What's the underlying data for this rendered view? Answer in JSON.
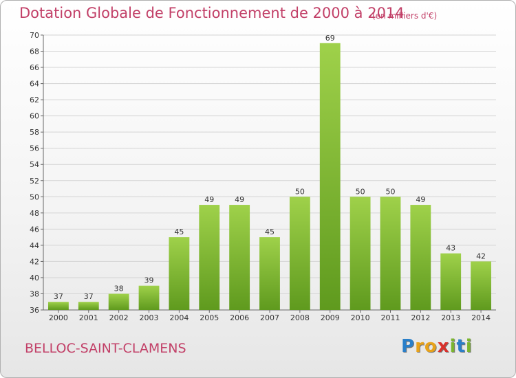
{
  "chart_data": {
    "type": "bar",
    "title": "Dotation Globale de Fonctionnement de 2000 à 2014",
    "subtitle": "(en milliers d'€)",
    "categories": [
      "2000",
      "2001",
      "2002",
      "2003",
      "2004",
      "2005",
      "2006",
      "2007",
      "2008",
      "2009",
      "2010",
      "2011",
      "2012",
      "2013",
      "2014"
    ],
    "values": [
      37,
      37,
      38,
      39,
      45,
      49,
      49,
      45,
      50,
      69,
      50,
      50,
      49,
      43,
      42
    ],
    "ylim": [
      36,
      70
    ],
    "yticks": [
      36,
      38,
      40,
      42,
      44,
      46,
      48,
      50,
      52,
      54,
      56,
      58,
      60,
      62,
      64,
      66,
      68,
      70
    ],
    "grid": true,
    "bar_color": "#7dba2e"
  },
  "location": "BELLOC-SAINT-CLAMENS",
  "logo": {
    "letters": [
      "P",
      "r",
      "o",
      "x",
      "i",
      "t",
      "i"
    ],
    "colors": [
      "#2a7fc9",
      "#e8a21a",
      "#e8a21a",
      "#d9302b",
      "#7ab52e",
      "#2a7fc9",
      "#7ab52e"
    ]
  }
}
